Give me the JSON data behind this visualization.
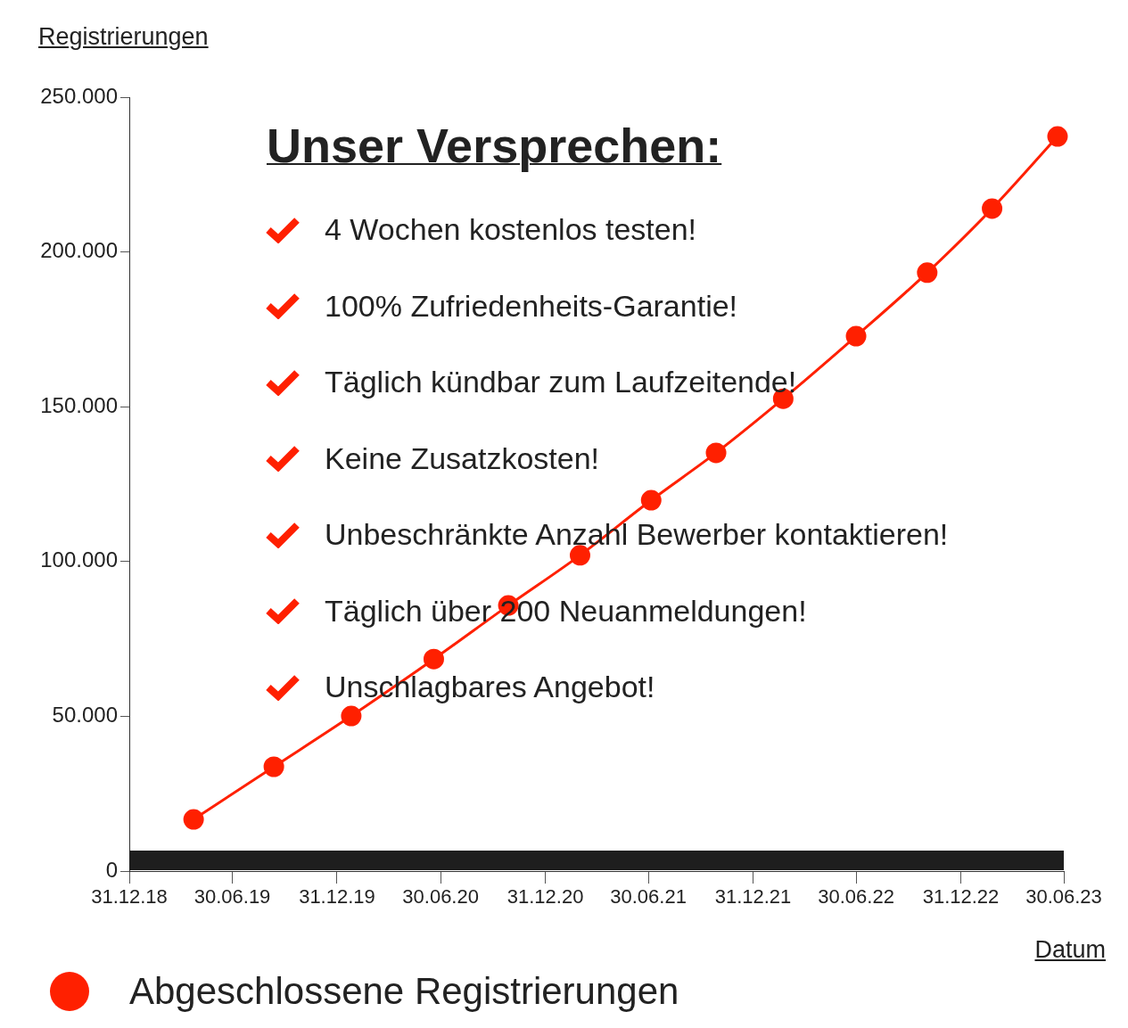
{
  "chart_data": {
    "type": "line",
    "title": "Unser Versprechen:",
    "ylabel": "Registrierungen",
    "xlabel": "Datum",
    "annotations": [
      "4 Wochen kostenlos testen!",
      "100% Zufriedenheits-Garantie!",
      "Täglich kündbar zum Laufzeitende!",
      "Keine Zusatzkosten!",
      "Unbeschränkte Anzahl Bewerber kontaktieren!",
      "Täglich über 200 Neuanmeldungen!",
      "Unschlagbares Angebot!"
    ],
    "x": [
      "2019-04-23",
      "2019-09-11",
      "2020-01-25",
      "2020-06-18",
      "2020-10-27",
      "2021-03-02",
      "2021-07-05",
      "2021-10-27",
      "2022-02-22",
      "2022-06-30",
      "2022-11-02",
      "2023-02-24",
      "2023-06-19"
    ],
    "series": [
      {
        "name": "Abgeschlossene Registrierungen",
        "color": "#ff2000",
        "values": [
          16700,
          33700,
          50100,
          68500,
          85800,
          102000,
          119800,
          135100,
          152600,
          172800,
          193300,
          214000,
          237300
        ]
      }
    ],
    "xlim": [
      "2018-12-31",
      "2023-06-30"
    ],
    "xticks": [
      {
        "value": "2018-12-31",
        "label": "31.12.18"
      },
      {
        "value": "2019-06-30",
        "label": "30.06.19"
      },
      {
        "value": "2019-12-31",
        "label": "31.12.19"
      },
      {
        "value": "2020-06-30",
        "label": "30.06.20"
      },
      {
        "value": "2020-12-31",
        "label": "31.12.20"
      },
      {
        "value": "2021-06-30",
        "label": "30.06.21"
      },
      {
        "value": "2021-12-31",
        "label": "31.12.21"
      },
      {
        "value": "2022-06-30",
        "label": "30.06.22"
      },
      {
        "value": "2022-12-31",
        "label": "31.12.22"
      },
      {
        "value": "2023-06-30",
        "label": "30.06.23"
      }
    ],
    "ylim": [
      0,
      250000
    ],
    "yticks": [
      0,
      {
        "value": 50000,
        "label": "50.000"
      },
      {
        "value": 100000,
        "label": "100.000"
      },
      {
        "value": 150000,
        "label": "150.000"
      },
      {
        "value": 200000,
        "label": "200.000"
      },
      {
        "value": 250000,
        "label": "250.000"
      }
    ],
    "grid": false,
    "legend": "bottom",
    "marker": "circle",
    "line_style": "solid"
  }
}
